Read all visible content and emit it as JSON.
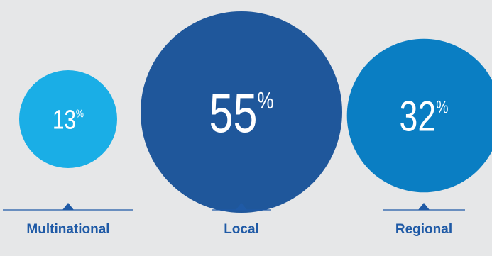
{
  "chart_data": {
    "type": "bubble",
    "unit": "%",
    "items": [
      {
        "label": "Multinational",
        "value": 13,
        "color": "#1aaee6"
      },
      {
        "label": "Local",
        "value": 55,
        "color": "#1f579b"
      },
      {
        "label": "Regional",
        "value": 32,
        "color": "#0a7ec3"
      }
    ],
    "marker_color": "#1f5aa6"
  }
}
